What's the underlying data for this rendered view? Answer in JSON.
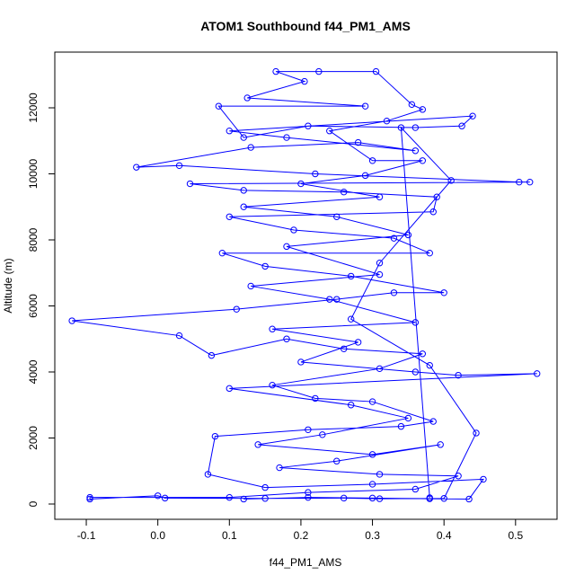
{
  "chart_data": {
    "type": "line",
    "title": "ATOM1 Southbound f44_PM1_AMS",
    "x_label": "f44_PM1_AMS",
    "y_label": "Altitude (m)",
    "color": "#0000ff",
    "markers": true,
    "grid": false,
    "xlim": [
      -0.144,
      0.558
    ],
    "ylim": [
      -463,
      13687
    ],
    "xticks": [
      -0.1,
      {
        "value": 0,
        "label": "0.0"
      },
      0.1,
      0.2,
      0.3,
      0.4,
      0.5
    ],
    "yticks": [
      0,
      2000,
      4000,
      6000,
      8000,
      10000,
      12000
    ],
    "x": [
      0.12,
      0.21,
      0.3,
      0.38,
      0.435,
      0.455,
      0.3,
      0.15,
      0.07,
      0.08,
      0.21,
      0.34,
      0.385,
      0.3,
      0.22,
      0.16,
      0.31,
      0.37,
      0.26,
      0.18,
      0.075,
      0.03,
      -0.12,
      0.11,
      0.25,
      0.33,
      0.4,
      0.27,
      0.15,
      0.09,
      0.38,
      0.33,
      0.19,
      0.1,
      0.385,
      0.39,
      0.26,
      0.12,
      0.045,
      0.52,
      0.505,
      0.22,
      0.03,
      -0.03,
      0.13,
      0.28,
      0.36,
      0.18,
      0.1,
      0.44,
      0.425,
      0.36,
      0.21,
      0.12,
      0.085,
      0.29,
      0.125,
      0.205,
      0.165,
      0.225,
      0.305,
      0.355,
      0.37,
      0.32,
      0.24,
      0.3,
      0.37,
      0.29,
      0.2,
      0.31,
      0.12,
      0.25,
      0.35,
      0.18,
      0.31,
      0.13,
      0.24,
      0.36,
      0.16,
      0.28,
      0.2,
      0.36,
      0.42,
      0.53,
      0.1,
      0.27,
      0.35,
      0.23,
      0.14,
      0.3,
      0.395,
      0.25,
      0.17,
      0.31,
      0.42,
      0.36,
      0.21,
      0.1,
      -0.095,
      -0.095,
      0.0,
      0.01,
      0.15,
      0.26,
      0.31,
      0.4,
      0.445,
      0.38,
      0.27,
      0.31,
      0.41,
      0.34,
      0.38
    ],
    "values": [
      150,
      200,
      180,
      160,
      150,
      750,
      600,
      500,
      900,
      2050,
      2250,
      2350,
      2500,
      3100,
      3200,
      3600,
      4100,
      4550,
      4700,
      5000,
      4500,
      5100,
      5550,
      5900,
      6200,
      6400,
      6400,
      6900,
      7200,
      7600,
      7600,
      8050,
      8300,
      8700,
      8850,
      9300,
      9450,
      9500,
      9700,
      9750,
      9750,
      10000,
      10250,
      10200,
      10800,
      10950,
      10700,
      11100,
      11300,
      11750,
      11450,
      11400,
      11450,
      11100,
      12050,
      12050,
      12300,
      12800,
      13100,
      13100,
      13100,
      12100,
      11950,
      11600,
      11300,
      10400,
      10400,
      9950,
      9700,
      9300,
      9000,
      8700,
      8150,
      7800,
      6950,
      6600,
      6200,
      5500,
      5300,
      4900,
      4300,
      4000,
      3900,
      3950,
      3500,
      3000,
      2600,
      2100,
      1800,
      1500,
      1800,
      1300,
      1100,
      900,
      850,
      450,
      350,
      200,
      200,
      150,
      250,
      180,
      170,
      180,
      160,
      170,
      2150,
      4200,
      5600,
      7300,
      9800,
      11400,
      190
    ]
  }
}
